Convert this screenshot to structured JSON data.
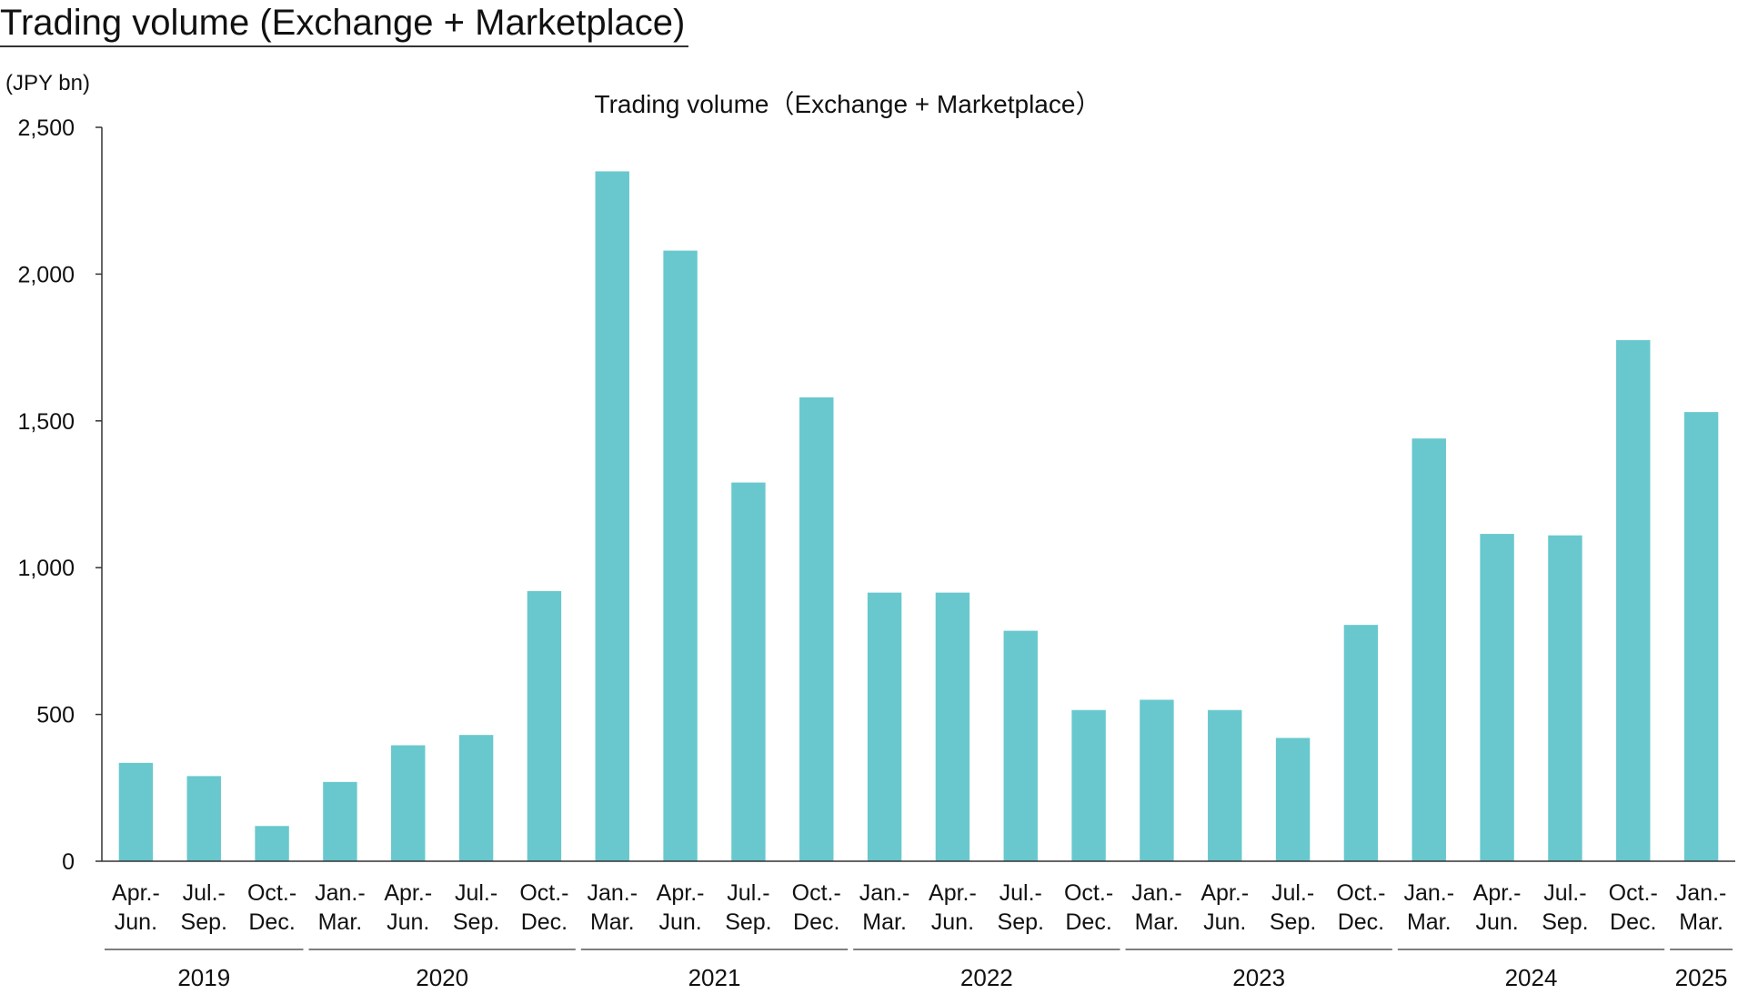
{
  "page_title": "Trading volume (Exchange + Marketplace)",
  "chart_data": {
    "type": "bar",
    "title": "Trading volume（Exchange + Marketplace）",
    "ylabel": "(JPY bn)",
    "xlabel": "",
    "ylim": [
      0,
      2500
    ],
    "yticks": [
      0,
      500,
      1000,
      1500,
      2000,
      2500
    ],
    "ytick_labels": [
      "0",
      "500",
      "1,000",
      "1,500",
      "2,000",
      "2,500"
    ],
    "grid": false,
    "bar_color": "#68C8CD",
    "categories": [
      [
        "Apr.-",
        "Jun."
      ],
      [
        "Jul.-",
        "Sep."
      ],
      [
        "Oct.-",
        "Dec."
      ],
      [
        "Jan.-",
        "Mar."
      ],
      [
        "Apr.-",
        "Jun."
      ],
      [
        "Jul.-",
        "Sep."
      ],
      [
        "Oct.-",
        "Dec."
      ],
      [
        "Jan.-",
        "Mar."
      ],
      [
        "Apr.-",
        "Jun."
      ],
      [
        "Jul.-",
        "Sep."
      ],
      [
        "Oct.-",
        "Dec."
      ],
      [
        "Jan.-",
        "Mar."
      ],
      [
        "Apr.-",
        "Jun."
      ],
      [
        "Jul.-",
        "Sep."
      ],
      [
        "Oct.-",
        "Dec."
      ],
      [
        "Jan.-",
        "Mar."
      ],
      [
        "Apr.-",
        "Jun."
      ],
      [
        "Jul.-",
        "Sep."
      ],
      [
        "Oct.-",
        "Dec."
      ],
      [
        "Jan.-",
        "Mar."
      ],
      [
        "Apr.-",
        "Jun."
      ],
      [
        "Jul.-",
        "Sep."
      ],
      [
        "Oct.-",
        "Dec."
      ],
      [
        "Jan.-",
        "Mar."
      ]
    ],
    "values": [
      335,
      290,
      120,
      270,
      395,
      430,
      920,
      2350,
      2080,
      1290,
      1580,
      915,
      915,
      785,
      515,
      550,
      515,
      420,
      805,
      1440,
      1115,
      1110,
      1775,
      1530
    ],
    "year_groups": [
      {
        "label": "2019",
        "start": 0,
        "end": 2
      },
      {
        "label": "2020",
        "start": 3,
        "end": 6
      },
      {
        "label": "2021",
        "start": 7,
        "end": 10
      },
      {
        "label": "2022",
        "start": 11,
        "end": 14
      },
      {
        "label": "2023",
        "start": 15,
        "end": 18
      },
      {
        "label": "2024",
        "start": 19,
        "end": 22
      },
      {
        "label": "2025",
        "start": 23,
        "end": 23
      }
    ]
  }
}
